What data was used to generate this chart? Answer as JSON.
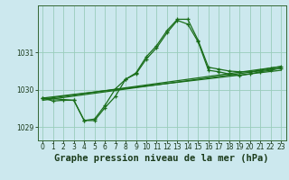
{
  "title": "Graphe pression niveau de la mer (hPa)",
  "bg_color": "#cce8ee",
  "line_color": "#1a6e1a",
  "grid_color": "#99ccbb",
  "axis_color": "#336633",
  "text_color": "#1a3a1a",
  "xlim": [
    -0.5,
    23.5
  ],
  "ylim": [
    1028.65,
    1032.25
  ],
  "yticks": [
    1029,
    1030,
    1031
  ],
  "xticks": [
    0,
    1,
    2,
    3,
    4,
    5,
    6,
    7,
    8,
    9,
    10,
    11,
    12,
    13,
    14,
    15,
    16,
    17,
    18,
    19,
    20,
    21,
    22,
    23
  ],
  "series1_x": [
    0,
    1,
    2,
    3,
    4,
    5,
    6,
    7,
    8,
    9,
    10,
    11,
    12,
    13,
    14,
    15,
    16,
    17,
    18,
    19,
    20,
    21,
    22,
    23
  ],
  "series1_y": [
    1029.78,
    1029.7,
    1029.72,
    1029.72,
    1029.18,
    1029.22,
    1029.58,
    1030.02,
    1030.28,
    1030.45,
    1030.88,
    1031.18,
    1031.58,
    1031.88,
    1031.88,
    1031.32,
    1030.6,
    1030.55,
    1030.5,
    1030.48,
    1030.48,
    1030.52,
    1030.58,
    1030.62
  ],
  "series2_x": [
    0,
    3,
    4,
    5,
    6,
    7,
    8,
    9,
    10,
    11,
    12,
    13,
    14,
    15,
    16,
    17,
    18,
    19,
    20,
    21,
    22,
    23
  ],
  "series2_y": [
    1029.78,
    1029.72,
    1029.18,
    1029.18,
    1029.52,
    1029.82,
    1030.28,
    1030.42,
    1030.82,
    1031.12,
    1031.52,
    1031.85,
    1031.75,
    1031.28,
    1030.52,
    1030.48,
    1030.42,
    1030.38,
    1030.42,
    1030.48,
    1030.52,
    1030.58
  ],
  "line1_x": [
    0,
    23
  ],
  "line1_y": [
    1029.72,
    1030.58
  ],
  "line2_x": [
    0,
    23
  ],
  "line2_y": [
    1029.78,
    1030.52
  ],
  "line3_x": [
    0,
    23
  ],
  "line3_y": [
    1029.75,
    1030.62
  ],
  "title_fontsize": 7.5,
  "tick_fontsize": 5.5
}
